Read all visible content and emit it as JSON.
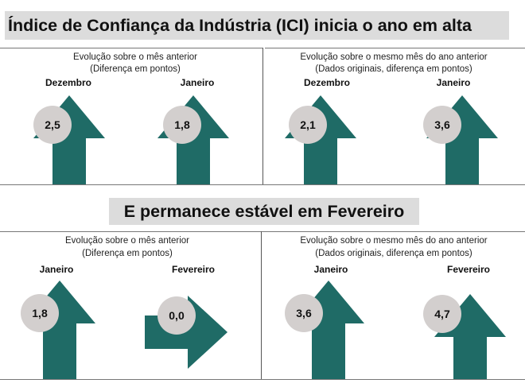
{
  "headline_top": "Índice de Confiança da Indústria (ICI) inicia o ano em alta",
  "headline_bottom": "E permanece estável em Fevereiro",
  "colors": {
    "arrow": "#1f6b66",
    "circle": "#d3cfce",
    "banner": "#dcdcdc"
  },
  "chart_data": [
    {
      "type": "arrow-indicator",
      "caption_line1": "Evolução sobre o mês anterior",
      "caption_line2": "(Diferença em pontos)",
      "items": [
        {
          "label": "Dezembro",
          "value": "2,5",
          "direction": "up"
        },
        {
          "label": "Janeiro",
          "value": "1,8",
          "direction": "up"
        }
      ]
    },
    {
      "type": "arrow-indicator",
      "caption_line1": "Evolução sobre o mesmo mês do ano anterior",
      "caption_line2": "(Dados originais, diferença em pontos)",
      "items": [
        {
          "label": "Dezembro",
          "value": "2,1",
          "direction": "up"
        },
        {
          "label": "Janeiro",
          "value": "3,6",
          "direction": "up"
        }
      ]
    },
    {
      "type": "arrow-indicator",
      "caption_line1": "Evolução sobre o mês anterior",
      "caption_line2": "(Diferença em pontos)",
      "items": [
        {
          "label": "Janeiro",
          "value": "1,8",
          "direction": "up"
        },
        {
          "label": "Fevereiro",
          "value": "0,0",
          "direction": "right"
        }
      ]
    },
    {
      "type": "arrow-indicator",
      "caption_line1": "Evolução sobre o mesmo mês do ano anterior",
      "caption_line2": "(Dados originais, diferença em pontos)",
      "items": [
        {
          "label": "Janeiro",
          "value": "3,6",
          "direction": "up"
        },
        {
          "label": "Fevereiro",
          "value": "4,7",
          "direction": "up"
        }
      ]
    }
  ]
}
